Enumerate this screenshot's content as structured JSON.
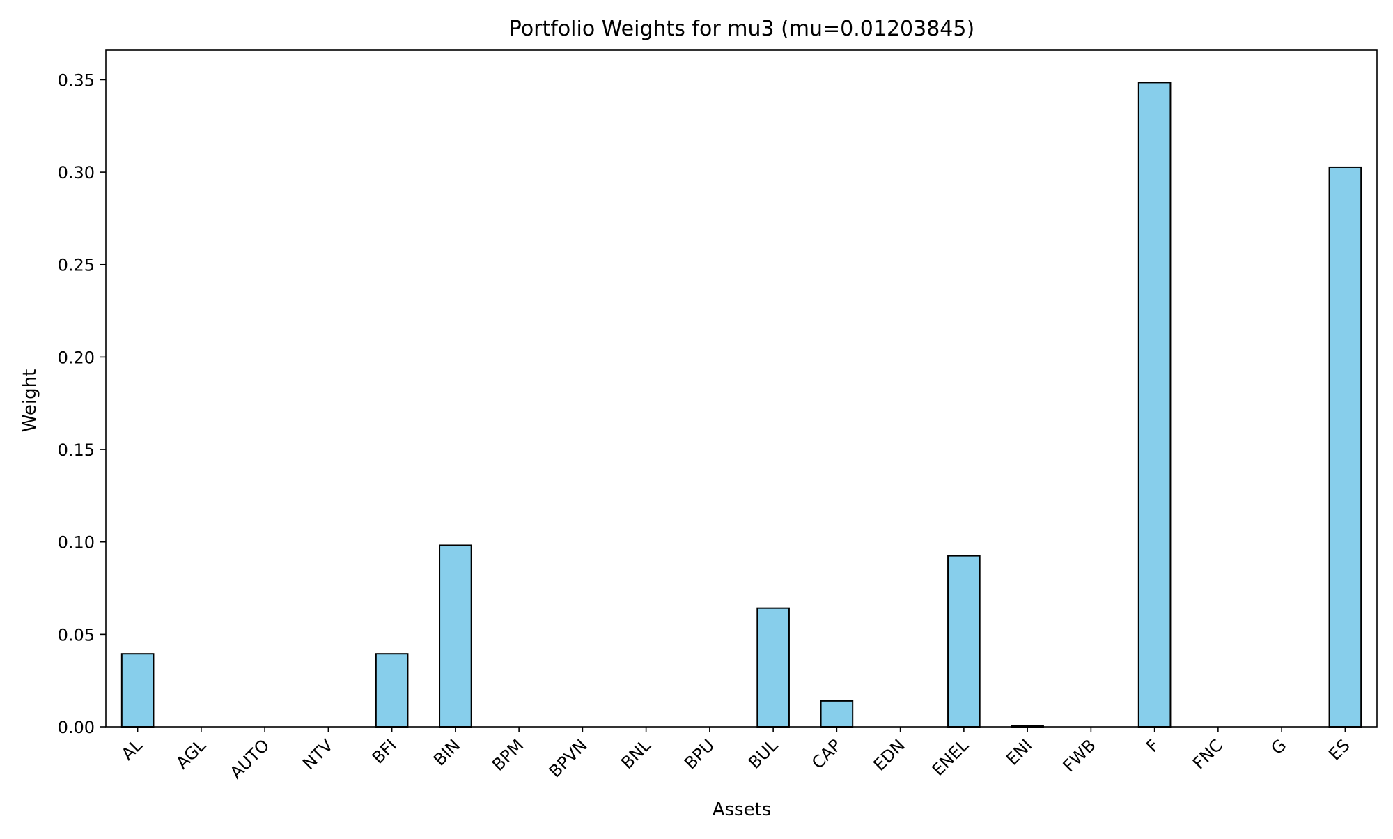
{
  "chart_data": {
    "type": "bar",
    "title": "Portfolio Weights for mu3 (mu=0.01203845)",
    "xlabel": "Assets",
    "ylabel": "Weight",
    "categories": [
      "AL",
      "AGL",
      "AUTO",
      "NTV",
      "BFI",
      "BIN",
      "BPM",
      "BPVN",
      "BNL",
      "BPU",
      "BUL",
      "CAP",
      "EDN",
      "ENEL",
      "ENI",
      "FWB",
      "F",
      "FNC",
      "G",
      "ES"
    ],
    "values": [
      0.0395,
      0,
      0,
      0,
      0.0395,
      0.0982,
      0,
      0,
      0,
      0,
      0.0642,
      0.014,
      0,
      0.0925,
      0.0005,
      0,
      0.3485,
      0,
      0,
      0.3027
    ],
    "ylim": [
      0,
      0.366
    ],
    "yticks": [
      "0.00",
      "0.05",
      "0.10",
      "0.15",
      "0.20",
      "0.25",
      "0.30",
      "0.35"
    ],
    "bar_color": "#87ceeb",
    "edge_color": "#000000",
    "grid": false,
    "legend": "none"
  }
}
